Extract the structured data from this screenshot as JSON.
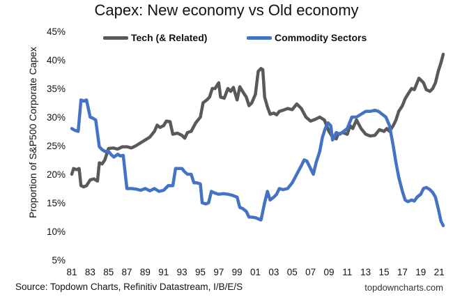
{
  "chart_data": {
    "type": "line",
    "title": "Capex: New economy vs Old economy",
    "ylabel": "Proportion of S&P500 Corporate Capex",
    "xlabel": "",
    "x_ticks": [
      "81",
      "83",
      "85",
      "87",
      "89",
      "91",
      "93",
      "95",
      "97",
      "99",
      "01",
      "03",
      "05",
      "07",
      "09",
      "11",
      "13",
      "15",
      "17",
      "19",
      "21"
    ],
    "y_ticks": [
      "5%",
      "10%",
      "15%",
      "20%",
      "25%",
      "30%",
      "35%",
      "40%",
      "45%"
    ],
    "xlim": [
      1981,
      2021.6
    ],
    "ylim": [
      5,
      45
    ],
    "grid": false,
    "legend": "top",
    "series": [
      {
        "name": "Tech (& Related)",
        "color": "#595959",
        "points": [
          [
            1981.0,
            20.0
          ],
          [
            1981.2,
            21.0
          ],
          [
            1981.5,
            20.8
          ],
          [
            1981.8,
            21.0
          ],
          [
            1982.0,
            18.0
          ],
          [
            1982.3,
            17.8
          ],
          [
            1982.6,
            18.0
          ],
          [
            1983.0,
            19.0
          ],
          [
            1983.4,
            19.2
          ],
          [
            1983.8,
            18.8
          ],
          [
            1984.0,
            22.0
          ],
          [
            1984.3,
            21.8
          ],
          [
            1984.6,
            22.5
          ],
          [
            1985.0,
            24.5
          ],
          [
            1985.5,
            24.6
          ],
          [
            1986.0,
            24.4
          ],
          [
            1986.5,
            24.8
          ],
          [
            1987.0,
            24.8
          ],
          [
            1987.5,
            24.6
          ],
          [
            1988.0,
            25.0
          ],
          [
            1988.5,
            25.5
          ],
          [
            1989.0,
            26.0
          ],
          [
            1989.5,
            26.5
          ],
          [
            1990.0,
            27.5
          ],
          [
            1990.3,
            28.6
          ],
          [
            1990.6,
            28.2
          ],
          [
            1991.0,
            28.5
          ],
          [
            1991.3,
            29.3
          ],
          [
            1991.7,
            29.2
          ],
          [
            1992.0,
            27.0
          ],
          [
            1992.5,
            27.2
          ],
          [
            1993.0,
            26.8
          ],
          [
            1993.3,
            26.3
          ],
          [
            1993.6,
            27.3
          ],
          [
            1994.0,
            27.5
          ],
          [
            1994.5,
            29.0
          ],
          [
            1995.0,
            30.0
          ],
          [
            1995.3,
            32.5
          ],
          [
            1995.7,
            33.0
          ],
          [
            1996.0,
            33.5
          ],
          [
            1996.3,
            35.0
          ],
          [
            1996.6,
            35.0
          ],
          [
            1997.0,
            36.0
          ],
          [
            1997.2,
            33.5
          ],
          [
            1997.6,
            33.3
          ],
          [
            1998.0,
            35.0
          ],
          [
            1998.3,
            34.5
          ],
          [
            1998.6,
            35.2
          ],
          [
            1999.0,
            33.0
          ],
          [
            1999.3,
            35.3
          ],
          [
            1999.6,
            34.5
          ],
          [
            2000.0,
            33.5
          ],
          [
            2000.3,
            32.0
          ],
          [
            2000.6,
            32.5
          ],
          [
            2001.0,
            34.0
          ],
          [
            2001.3,
            38.0
          ],
          [
            2001.6,
            38.5
          ],
          [
            2001.8,
            38.3
          ],
          [
            2002.0,
            33.5
          ],
          [
            2002.3,
            31.8
          ],
          [
            2002.6,
            30.5
          ],
          [
            2003.0,
            30.7
          ],
          [
            2003.3,
            30.4
          ],
          [
            2003.6,
            31.0
          ],
          [
            2004.0,
            31.2
          ],
          [
            2004.5,
            31.5
          ],
          [
            2005.0,
            31.3
          ],
          [
            2005.5,
            32.3
          ],
          [
            2006.0,
            31.5
          ],
          [
            2006.5,
            30.0
          ],
          [
            2007.0,
            29.3
          ],
          [
            2007.5,
            29.6
          ],
          [
            2008.0,
            30.0
          ],
          [
            2008.5,
            29.5
          ],
          [
            2009.0,
            27.5
          ],
          [
            2009.4,
            26.5
          ],
          [
            2009.8,
            26.2
          ],
          [
            2010.0,
            27.0
          ],
          [
            2010.5,
            27.3
          ],
          [
            2011.0,
            27.0
          ],
          [
            2011.3,
            28.5
          ],
          [
            2011.6,
            28.0
          ],
          [
            2012.0,
            29.5
          ],
          [
            2012.5,
            28.0
          ],
          [
            2013.0,
            27.0
          ],
          [
            2013.5,
            26.7
          ],
          [
            2014.0,
            26.8
          ],
          [
            2014.5,
            27.8
          ],
          [
            2015.0,
            27.5
          ],
          [
            2015.3,
            28.0
          ],
          [
            2015.6,
            27.5
          ],
          [
            2016.0,
            28.5
          ],
          [
            2016.3,
            29.5
          ],
          [
            2016.6,
            31.0
          ],
          [
            2017.0,
            32.0
          ],
          [
            2017.3,
            33.2
          ],
          [
            2017.6,
            34.0
          ],
          [
            2018.0,
            35.0
          ],
          [
            2018.3,
            34.8
          ],
          [
            2018.6,
            36.0
          ],
          [
            2018.8,
            36.8
          ],
          [
            2019.0,
            36.5
          ],
          [
            2019.3,
            36.0
          ],
          [
            2019.6,
            34.8
          ],
          [
            2020.0,
            34.5
          ],
          [
            2020.3,
            35.0
          ],
          [
            2020.6,
            36.0
          ],
          [
            2020.9,
            38.0
          ],
          [
            2021.2,
            39.5
          ],
          [
            2021.45,
            41.0
          ]
        ]
      },
      {
        "name": "Commodity Sectors",
        "color": "#4472C4",
        "points": [
          [
            1981.0,
            28.0
          ],
          [
            1981.3,
            27.7
          ],
          [
            1981.7,
            27.5
          ],
          [
            1982.0,
            33.0
          ],
          [
            1982.3,
            32.8
          ],
          [
            1982.6,
            33.0
          ],
          [
            1983.0,
            30.0
          ],
          [
            1983.3,
            29.8
          ],
          [
            1983.6,
            29.5
          ],
          [
            1984.0,
            24.8
          ],
          [
            1984.3,
            24.3
          ],
          [
            1984.6,
            24.0
          ],
          [
            1985.0,
            24.0
          ],
          [
            1985.3,
            23.4
          ],
          [
            1985.6,
            23.0
          ],
          [
            1986.0,
            23.5
          ],
          [
            1986.3,
            23.2
          ],
          [
            1986.6,
            23.3
          ],
          [
            1987.0,
            17.5
          ],
          [
            1987.5,
            17.5
          ],
          [
            1988.0,
            17.4
          ],
          [
            1988.5,
            17.2
          ],
          [
            1989.0,
            17.5
          ],
          [
            1989.5,
            17.1
          ],
          [
            1990.0,
            17.5
          ],
          [
            1990.5,
            17.0
          ],
          [
            1991.0,
            17.2
          ],
          [
            1991.5,
            18.0
          ],
          [
            1992.0,
            18.0
          ],
          [
            1992.3,
            21.0
          ],
          [
            1992.6,
            21.0
          ],
          [
            1993.0,
            21.0
          ],
          [
            1993.3,
            20.4
          ],
          [
            1993.6,
            20.0
          ],
          [
            1994.0,
            20.0
          ],
          [
            1994.3,
            18.5
          ],
          [
            1994.6,
            18.5
          ],
          [
            1995.0,
            18.3
          ],
          [
            1995.2,
            15.0
          ],
          [
            1995.6,
            14.8
          ],
          [
            1995.9,
            15.0
          ],
          [
            1996.2,
            17.0
          ],
          [
            1996.6,
            16.7
          ],
          [
            1997.0,
            16.5
          ],
          [
            1997.5,
            16.6
          ],
          [
            1998.0,
            16.5
          ],
          [
            1998.5,
            16.3
          ],
          [
            1999.0,
            16.0
          ],
          [
            1999.3,
            14.2
          ],
          [
            1999.6,
            14.0
          ],
          [
            2000.0,
            13.5
          ],
          [
            2000.3,
            12.5
          ],
          [
            2000.6,
            12.5
          ],
          [
            2001.0,
            12.4
          ],
          [
            2001.3,
            12.2
          ],
          [
            2001.6,
            12.0
          ],
          [
            2002.0,
            15.0
          ],
          [
            2002.3,
            17.0
          ],
          [
            2002.6,
            15.5
          ],
          [
            2003.0,
            16.0
          ],
          [
            2003.3,
            16.5
          ],
          [
            2003.6,
            17.5
          ],
          [
            2004.0,
            17.3
          ],
          [
            2004.5,
            17.5
          ],
          [
            2005.0,
            18.5
          ],
          [
            2005.5,
            20.0
          ],
          [
            2006.0,
            21.5
          ],
          [
            2006.3,
            22.5
          ],
          [
            2006.6,
            22.3
          ],
          [
            2007.0,
            21.0
          ],
          [
            2007.3,
            20.0
          ],
          [
            2007.6,
            22.0
          ],
          [
            2008.0,
            24.0
          ],
          [
            2008.3,
            26.5
          ],
          [
            2008.6,
            28.0
          ],
          [
            2008.9,
            29.0
          ],
          [
            2009.2,
            28.5
          ],
          [
            2009.4,
            26.0
          ],
          [
            2009.8,
            27.3
          ],
          [
            2010.2,
            27.0
          ],
          [
            2010.6,
            27.5
          ],
          [
            2011.0,
            28.0
          ],
          [
            2011.5,
            30.0
          ],
          [
            2012.0,
            30.0
          ],
          [
            2012.5,
            30.5
          ],
          [
            2013.0,
            31.0
          ],
          [
            2013.5,
            31.0
          ],
          [
            2014.0,
            31.2
          ],
          [
            2014.4,
            31.0
          ],
          [
            2014.8,
            30.5
          ],
          [
            2015.2,
            30.0
          ],
          [
            2015.6,
            28.5
          ],
          [
            2016.0,
            25.0
          ],
          [
            2016.3,
            22.0
          ],
          [
            2016.6,
            19.5
          ],
          [
            2017.0,
            17.0
          ],
          [
            2017.3,
            15.5
          ],
          [
            2017.6,
            15.2
          ],
          [
            2018.0,
            15.5
          ],
          [
            2018.3,
            15.3
          ],
          [
            2018.6,
            16.0
          ],
          [
            2019.0,
            16.5
          ],
          [
            2019.3,
            17.5
          ],
          [
            2019.6,
            17.7
          ],
          [
            2020.0,
            17.3
          ],
          [
            2020.3,
            16.8
          ],
          [
            2020.6,
            16.0
          ],
          [
            2020.9,
            14.0
          ],
          [
            2021.2,
            11.8
          ],
          [
            2021.45,
            11.0
          ]
        ]
      }
    ]
  },
  "footer": {
    "source": "Source: Topdown Charts, Refinitiv Datastream, I/B/E/S",
    "brand": "topdowncharts.com"
  }
}
